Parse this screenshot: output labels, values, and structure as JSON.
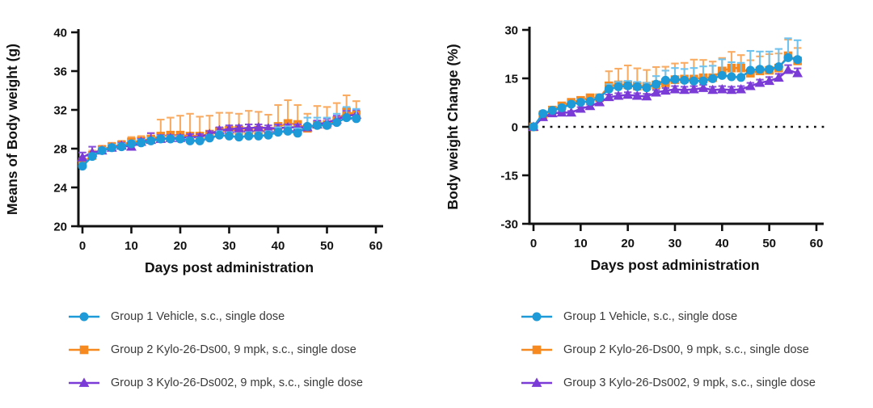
{
  "page": {
    "background": "#ffffff"
  },
  "colors": {
    "group1_blue": "#1D9AD7",
    "group2_orange": "#F6891F",
    "group3_purple": "#7A3BD7",
    "group1_error": "#6FC3EE",
    "group2_error": "#F9AC63",
    "group3_error": "#8A52DC",
    "axis": "#111111"
  },
  "legend": {
    "items": [
      {
        "label": "Group 1 Vehicle, s.c., single dose",
        "marker": "circle",
        "color": "#1D9AD7"
      },
      {
        "label": "Group 2 Kylo-26-Ds00, 9 mpk, s.c., single dose",
        "marker": "square",
        "color": "#F6891F"
      },
      {
        "label": "Group 3 Kylo-26-Ds002, 9 mpk, s.c., single dose",
        "marker": "triangle",
        "color": "#7A3BD7"
      }
    ]
  },
  "chart_data": [
    {
      "type": "line",
      "title": "",
      "xlabel": "Days post administration",
      "ylabel": "Means of Body weight (g)",
      "xlim": [
        0,
        60
      ],
      "ylim": [
        20,
        40
      ],
      "xticks": [
        0,
        10,
        20,
        30,
        40,
        50,
        60
      ],
      "yticks": [
        20,
        24,
        28,
        32,
        36,
        40
      ],
      "grid": false,
      "zero_line": false,
      "legend_position": "bottom",
      "x": [
        0,
        2,
        4,
        6,
        8,
        10,
        12,
        14,
        16,
        18,
        20,
        22,
        24,
        26,
        28,
        30,
        32,
        34,
        36,
        38,
        40,
        42,
        44,
        46,
        48,
        50,
        52,
        54,
        56
      ],
      "series": [
        {
          "name": "Group 1 Vehicle, s.c., single dose",
          "marker": "circle",
          "color": "#1D9AD7",
          "error_color": "#6FC3EE",
          "values": [
            26.2,
            27.2,
            27.8,
            28.1,
            28.2,
            28.5,
            28.6,
            28.8,
            29.0,
            29.0,
            29.0,
            28.8,
            28.8,
            29.1,
            29.4,
            29.3,
            29.2,
            29.3,
            29.3,
            29.4,
            29.7,
            29.8,
            29.6,
            30.3,
            30.4,
            30.4,
            30.7,
            31.2,
            31.1
          ],
          "error_up": [
            0.3,
            0.3,
            0.3,
            0.3,
            0.3,
            0.3,
            0.3,
            0.3,
            0.3,
            0.3,
            0.3,
            0.3,
            0.3,
            0.3,
            0.4,
            0.4,
            0.4,
            0.4,
            0.4,
            0.4,
            0.5,
            0.5,
            0.5,
            0.9,
            0.8,
            0.8,
            0.9,
            1.1,
            1.0
          ]
        },
        {
          "name": "Group 2 Kylo-26-Ds00, 9 mpk, s.c., single dose",
          "marker": "square",
          "color": "#F6891F",
          "error_color": "#F9AC63",
          "values": [
            26.5,
            27.3,
            27.9,
            28.2,
            28.4,
            28.7,
            28.8,
            29.0,
            29.3,
            29.4,
            29.4,
            29.3,
            29.3,
            29.5,
            29.8,
            29.9,
            29.9,
            29.8,
            29.9,
            29.8,
            30.3,
            30.6,
            30.5,
            30.1,
            30.5,
            30.5,
            30.9,
            31.8,
            31.5
          ],
          "error_up": [
            0.5,
            0.5,
            0.4,
            0.4,
            0.4,
            0.5,
            0.5,
            0.6,
            1.7,
            1.8,
            2.0,
            2.3,
            2.0,
            1.9,
            1.9,
            1.8,
            1.7,
            2.1,
            1.9,
            1.7,
            2.2,
            2.4,
            2.0,
            1.5,
            1.9,
            1.8,
            1.8,
            1.7,
            1.4
          ]
        },
        {
          "name": "Group 3 Kylo-26-Ds002, 9 mpk, s.c., single dose",
          "marker": "triangle",
          "color": "#7A3BD7",
          "error_color": "#8A52DC",
          "values": [
            27.1,
            27.6,
            27.8,
            28.1,
            28.3,
            28.2,
            28.7,
            28.9,
            29.0,
            29.1,
            29.1,
            29.2,
            29.2,
            29.5,
            29.9,
            30.0,
            30.1,
            30.1,
            30.2,
            30.1,
            30.1,
            30.2,
            30.2,
            30.2,
            30.5,
            30.7,
            31.0,
            31.4,
            31.5
          ],
          "error_up": [
            0.5,
            0.6,
            0.3,
            0.3,
            0.3,
            0.4,
            0.3,
            0.7,
            0.4,
            0.3,
            0.3,
            0.3,
            0.3,
            0.3,
            0.3,
            0.4,
            0.3,
            0.4,
            0.3,
            0.3,
            0.4,
            0.3,
            0.3,
            0.3,
            0.4,
            0.4,
            0.4,
            0.5,
            0.5
          ]
        }
      ]
    },
    {
      "type": "line",
      "title": "",
      "xlabel": "Days post administration",
      "ylabel": "Body weight Change (%)",
      "xlim": [
        0,
        60
      ],
      "ylim": [
        -30,
        30
      ],
      "xticks": [
        0,
        10,
        20,
        30,
        40,
        50,
        60
      ],
      "yticks": [
        -30,
        -15,
        0,
        15,
        30
      ],
      "grid": false,
      "zero_line": true,
      "legend_position": "bottom",
      "x": [
        0,
        2,
        4,
        6,
        8,
        10,
        12,
        14,
        16,
        18,
        20,
        22,
        24,
        26,
        28,
        30,
        32,
        34,
        36,
        38,
        40,
        42,
        44,
        46,
        48,
        50,
        52,
        54,
        56
      ],
      "series": [
        {
          "name": "Group 1 Vehicle, s.c., single dose",
          "marker": "circle",
          "color": "#1D9AD7",
          "error_color": "#6FC3EE",
          "values": [
            0,
            4.1,
            5.1,
            5.9,
            7.0,
            7.6,
            7.9,
            9.0,
            11.7,
            12.4,
            12.7,
            12.4,
            12.1,
            13.2,
            14.4,
            14.7,
            14.4,
            14.2,
            14.2,
            14.9,
            15.9,
            15.5,
            15.3,
            17.5,
            17.8,
            17.8,
            18.6,
            21.4,
            20.8
          ],
          "error_up": [
            0.5,
            0.8,
            0.8,
            0.8,
            0.8,
            0.8,
            0.8,
            1.0,
            1.5,
            1.5,
            1.5,
            1.5,
            1.5,
            2.5,
            3.0,
            3.5,
            3.5,
            4.0,
            4.5,
            4.0,
            5.0,
            4.5,
            4.5,
            6.0,
            5.5,
            5.5,
            5.5,
            6.0,
            6.0
          ]
        },
        {
          "name": "Group 2 Kylo-26-Ds00, 9 mpk, s.c., single dose",
          "marker": "square",
          "color": "#F6891F",
          "error_color": "#F9AC63",
          "values": [
            0,
            3.6,
            5.2,
            6.5,
            7.6,
            8.2,
            9.0,
            9.0,
            12.7,
            13.0,
            13.0,
            12.6,
            12.6,
            13.0,
            13.6,
            14.6,
            14.8,
            14.8,
            15.2,
            15.2,
            17.3,
            18.2,
            18.2,
            16.6,
            17.3,
            17.5,
            18.2,
            22.0,
            20.4
          ],
          "error_up": [
            0.8,
            0.8,
            0.8,
            0.8,
            0.8,
            1.0,
            1.0,
            1.0,
            4.5,
            5.0,
            6.0,
            5.5,
            5.0,
            5.5,
            5.0,
            5.0,
            5.0,
            6.0,
            5.5,
            5.0,
            4.0,
            5.0,
            4.0,
            4.0,
            4.5,
            5.0,
            4.5,
            5.0,
            4.0
          ]
        },
        {
          "name": "Group 3 Kylo-26-Ds002, 9 mpk, s.c., single dose",
          "marker": "triangle",
          "color": "#7A3BD7",
          "error_color": "#8A52DC",
          "values": [
            0,
            3.0,
            4.2,
            4.4,
            4.4,
            5.6,
            6.4,
            7.6,
            9.2,
            9.6,
            9.9,
            9.6,
            9.4,
            10.6,
            11.2,
            11.6,
            11.4,
            11.6,
            12.0,
            11.4,
            11.6,
            11.4,
            11.6,
            12.6,
            13.6,
            14.2,
            15.2,
            17.6,
            16.6
          ],
          "error_up": [
            0.3,
            0.5,
            0.5,
            0.5,
            0.5,
            0.5,
            0.5,
            0.5,
            0.8,
            0.8,
            0.8,
            0.8,
            0.8,
            0.8,
            0.8,
            1.0,
            1.0,
            1.0,
            1.0,
            1.0,
            1.0,
            1.0,
            1.0,
            1.0,
            1.0,
            1.2,
            1.2,
            1.5,
            1.5
          ]
        }
      ]
    }
  ]
}
